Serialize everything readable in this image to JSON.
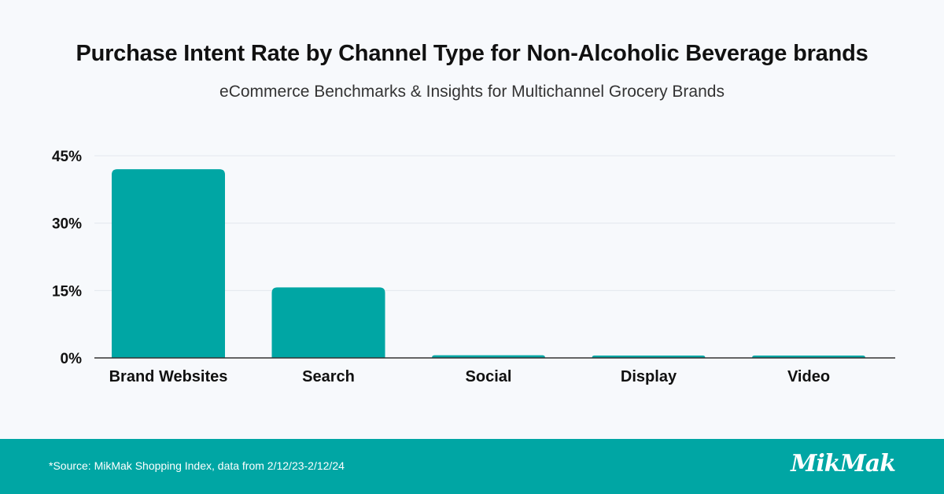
{
  "header": {
    "title": "Purchase Intent Rate by Channel Type for Non-Alcoholic Beverage brands",
    "subtitle": "eCommerce Benchmarks & Insights for Multichannel Grocery Brands"
  },
  "footer": {
    "source": "*Source: MikMak Shopping Index, data from 2/12/23-2/12/24",
    "logo": "MikMak"
  },
  "colors": {
    "bar": "#00a6a4",
    "grid": "#e3e8ee",
    "baseline": "#333333",
    "footer": "#00a6a4"
  },
  "chart_data": {
    "type": "bar",
    "title": "Purchase Intent Rate by Channel Type for Non-Alcoholic Beverage brands",
    "subtitle": "eCommerce Benchmarks & Insights for Multichannel Grocery Brands",
    "xlabel": "",
    "ylabel": "",
    "categories": [
      "Brand Websites",
      "Search",
      "Social",
      "Display",
      "Video"
    ],
    "values": [
      42,
      15.7,
      0.6,
      0.4,
      0.4
    ],
    "unit": "%",
    "ylim": [
      0,
      45
    ],
    "yticks": [
      0,
      15,
      30,
      45
    ],
    "ytick_labels": [
      "0%",
      "15%",
      "30%",
      "45%"
    ],
    "grid": true
  }
}
